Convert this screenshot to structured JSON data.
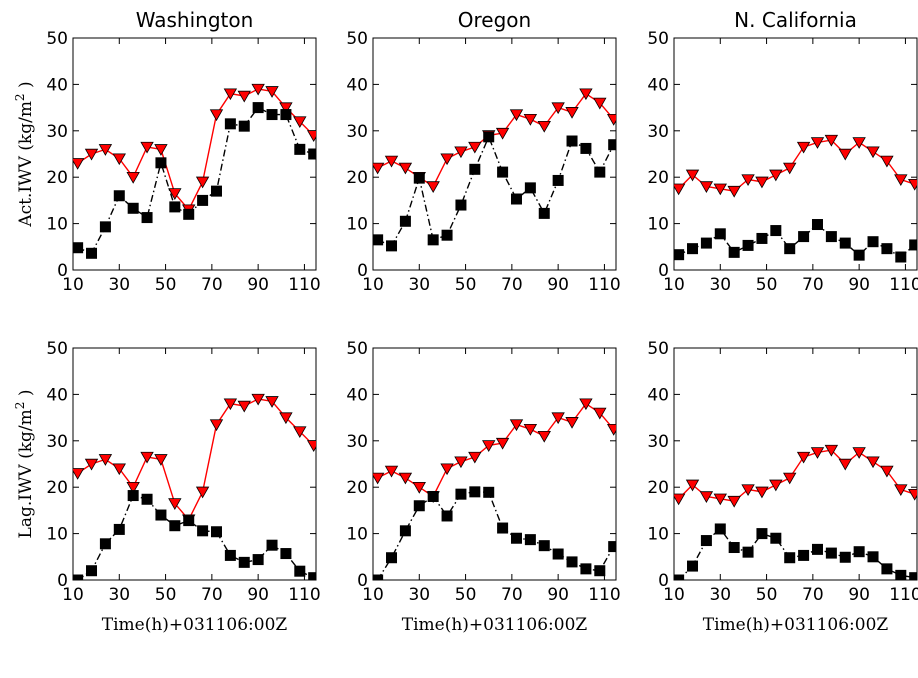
{
  "figure": {
    "colors": {
      "act": "#ff0000",
      "lag": "#000000",
      "axes": "#000000"
    }
  },
  "chart_data": [
    {
      "type": "line",
      "title": "Washington",
      "ylabel": "Act.IWV (kg/m²)",
      "xlabel": "",
      "xlim": [
        10,
        115
      ],
      "ylim": [
        0,
        50
      ],
      "xticks": [
        10,
        30,
        50,
        70,
        90,
        110
      ],
      "yticks": [
        0,
        10,
        20,
        30,
        40,
        50
      ],
      "series": [
        {
          "name": "",
          "style": "red-solid-triangle-down",
          "x": [
            12,
            18,
            24,
            30,
            36,
            42,
            48,
            54,
            60,
            66,
            72,
            78,
            84,
            90,
            96,
            102,
            108,
            114
          ],
          "y": [
            23,
            25,
            26,
            24,
            20,
            26.5,
            26,
            16.5,
            13,
            19,
            33.5,
            38,
            37.5,
            39,
            38.5,
            35,
            32,
            29
          ]
        },
        {
          "name": "",
          "style": "black-dashdot-square",
          "x": [
            12,
            18,
            24,
            30,
            36,
            42,
            48,
            54,
            60,
            66,
            72,
            78,
            84,
            90,
            96,
            102,
            108,
            114
          ],
          "y": [
            4.8,
            3.6,
            9.3,
            16,
            13.3,
            11.3,
            23.1,
            13.6,
            12,
            15,
            17,
            31.5,
            31,
            35,
            33.5,
            33.5,
            26,
            25
          ]
        }
      ]
    },
    {
      "type": "line",
      "title": "Oregon",
      "ylabel": "",
      "xlabel": "",
      "xlim": [
        10,
        115
      ],
      "ylim": [
        0,
        50
      ],
      "xticks": [
        10,
        30,
        50,
        70,
        90,
        110
      ],
      "yticks": [
        0,
        10,
        20,
        30,
        40,
        50
      ],
      "series": [
        {
          "name": "",
          "style": "red-solid-triangle-down",
          "x": [
            12,
            18,
            24,
            30,
            36,
            42,
            48,
            54,
            60,
            66,
            72,
            78,
            84,
            90,
            96,
            102,
            108,
            114
          ],
          "y": [
            22,
            23.5,
            22,
            20,
            18,
            24,
            25.5,
            26.5,
            29,
            29.5,
            33.5,
            32.5,
            31,
            35,
            34,
            38,
            36,
            32.5
          ]
        },
        {
          "name": "",
          "style": "black-dashdot-square",
          "x": [
            12,
            18,
            24,
            30,
            36,
            42,
            48,
            54,
            60,
            66,
            72,
            78,
            84,
            90,
            96,
            102,
            108,
            114
          ],
          "y": [
            6.5,
            5.2,
            10.5,
            19.8,
            6.5,
            7.5,
            14,
            21.7,
            28.7,
            21.1,
            15.3,
            17.7,
            12.2,
            19.3,
            27.8,
            26.2,
            21.1,
            27
          ]
        }
      ]
    },
    {
      "type": "line",
      "title": "N. California",
      "ylabel": "",
      "xlabel": "",
      "xlim": [
        10,
        115
      ],
      "ylim": [
        0,
        50
      ],
      "xticks": [
        10,
        30,
        50,
        70,
        90,
        110
      ],
      "yticks": [
        0,
        10,
        20,
        30,
        40,
        50
      ],
      "series": [
        {
          "name": "",
          "style": "red-solid-triangle-down",
          "x": [
            12,
            18,
            24,
            30,
            36,
            42,
            48,
            54,
            60,
            66,
            72,
            78,
            84,
            90,
            96,
            102,
            108,
            114
          ],
          "y": [
            17.5,
            20.5,
            18,
            17.5,
            17,
            19.5,
            19,
            20.5,
            22,
            26.5,
            27.5,
            28,
            25,
            27.5,
            25.5,
            23.5,
            19.5,
            18.5
          ]
        },
        {
          "name": "",
          "style": "black-dashdot-square",
          "x": [
            12,
            18,
            24,
            30,
            36,
            42,
            48,
            54,
            60,
            66,
            72,
            78,
            84,
            90,
            96,
            102,
            108,
            114
          ],
          "y": [
            3.3,
            4.6,
            5.8,
            7.8,
            3.8,
            5.3,
            6.8,
            8.5,
            4.6,
            7.2,
            9.8,
            7.2,
            5.8,
            3.2,
            6.1,
            4.6,
            2.8,
            5.4
          ]
        }
      ]
    },
    {
      "type": "line",
      "title": "",
      "ylabel": "Lag.IWV (kg/m²)",
      "xlabel": "Time(h)+031106:00Z",
      "xlim": [
        10,
        115
      ],
      "ylim": [
        0,
        50
      ],
      "xticks": [
        10,
        30,
        50,
        70,
        90,
        110
      ],
      "yticks": [
        0,
        10,
        20,
        30,
        40,
        50
      ],
      "series": [
        {
          "name": "",
          "style": "red-solid-triangle-down",
          "x": [
            12,
            18,
            24,
            30,
            36,
            42,
            48,
            54,
            60,
            66,
            72,
            78,
            84,
            90,
            96,
            102,
            108,
            114
          ],
          "y": [
            23,
            25,
            26,
            24,
            20,
            26.5,
            26,
            16.5,
            13,
            19,
            33.5,
            38,
            37.5,
            39,
            38.5,
            35,
            32,
            29
          ]
        },
        {
          "name": "",
          "style": "black-dashdot-square",
          "x": [
            12,
            18,
            24,
            30,
            36,
            42,
            48,
            54,
            60,
            66,
            72,
            78,
            84,
            90,
            96,
            102,
            108,
            114
          ],
          "y": [
            0,
            2,
            7.8,
            10.9,
            18.2,
            17.4,
            14,
            11.7,
            12.8,
            10.6,
            10.4,
            5.3,
            3.8,
            4.4,
            7.5,
            5.7,
            1.9,
            0.5
          ]
        }
      ]
    },
    {
      "type": "line",
      "title": "",
      "ylabel": "",
      "xlabel": "Time(h)+031106:00Z",
      "xlim": [
        10,
        115
      ],
      "ylim": [
        0,
        50
      ],
      "xticks": [
        10,
        30,
        50,
        70,
        90,
        110
      ],
      "yticks": [
        0,
        10,
        20,
        30,
        40,
        50
      ],
      "series": [
        {
          "name": "",
          "style": "red-solid-triangle-down",
          "x": [
            12,
            18,
            24,
            30,
            36,
            42,
            48,
            54,
            60,
            66,
            72,
            78,
            84,
            90,
            96,
            102,
            108,
            114
          ],
          "y": [
            22,
            23.5,
            22,
            20,
            18,
            24,
            25.5,
            26.5,
            29,
            29.5,
            33.5,
            32.5,
            31,
            35,
            34,
            38,
            36,
            32.5
          ]
        },
        {
          "name": "",
          "style": "black-dashdot-square",
          "x": [
            12,
            18,
            24,
            30,
            36,
            42,
            48,
            54,
            60,
            66,
            72,
            78,
            84,
            90,
            96,
            102,
            108,
            114
          ],
          "y": [
            0,
            4.8,
            10.6,
            16,
            18,
            13.8,
            18.5,
            19,
            18.9,
            11.2,
            9,
            8.7,
            7.4,
            5.6,
            3.9,
            2.4,
            2,
            7.2
          ]
        }
      ]
    },
    {
      "type": "line",
      "title": "",
      "ylabel": "",
      "xlabel": "Time(h)+031106:00Z",
      "xlim": [
        10,
        115
      ],
      "ylim": [
        0,
        50
      ],
      "xticks": [
        10,
        30,
        50,
        70,
        90,
        110
      ],
      "yticks": [
        0,
        10,
        20,
        30,
        40,
        50
      ],
      "series": [
        {
          "name": "",
          "style": "red-solid-triangle-down",
          "x": [
            12,
            18,
            24,
            30,
            36,
            42,
            48,
            54,
            60,
            66,
            72,
            78,
            84,
            90,
            96,
            102,
            108,
            114
          ],
          "y": [
            17.5,
            20.5,
            18,
            17.5,
            17,
            19.5,
            19,
            20.5,
            22,
            26.5,
            27.5,
            28,
            25,
            27.5,
            25.5,
            23.5,
            19.5,
            18.5
          ]
        },
        {
          "name": "",
          "style": "black-dashdot-square",
          "x": [
            12,
            18,
            24,
            30,
            36,
            42,
            48,
            54,
            60,
            66,
            72,
            78,
            84,
            90,
            96,
            102,
            108,
            114
          ],
          "y": [
            0,
            3,
            8.5,
            11,
            7,
            6,
            10,
            9,
            4.8,
            5.3,
            6.6,
            5.8,
            4.9,
            6.1,
            5,
            2.4,
            1,
            0.5
          ]
        }
      ]
    }
  ]
}
